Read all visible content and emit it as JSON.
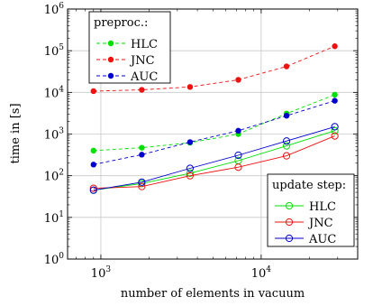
{
  "chart_data": {
    "type": "line",
    "xscale": "log",
    "yscale": "log",
    "xlabel": "number of elements in vacuum",
    "ylabel": "time in [s]",
    "xlim": [
      620,
      40000
    ],
    "ylim": [
      1,
      1000000
    ],
    "x": [
      900,
      1800,
      3600,
      7200,
      14400,
      28800
    ],
    "x_tick_values": [
      1000,
      10000
    ],
    "x_tick_labels": [
      {
        "base": "10",
        "exp": "3"
      },
      {
        "base": "10",
        "exp": "4"
      }
    ],
    "y_tick_values": [
      1,
      10,
      100,
      1000,
      10000,
      100000,
      1000000
    ],
    "y_tick_labels": [
      {
        "base": "10",
        "exp": "0"
      },
      {
        "base": "10",
        "exp": "1"
      },
      {
        "base": "10",
        "exp": "2"
      },
      {
        "base": "10",
        "exp": "3"
      },
      {
        "base": "10",
        "exp": "4"
      },
      {
        "base": "10",
        "exp": "5"
      },
      {
        "base": "10",
        "exp": "6"
      }
    ],
    "grid": true,
    "legends": [
      {
        "title": "preproc.:",
        "placement": "top-left",
        "entries": [
          "HLC",
          "JNC",
          "AUC"
        ]
      },
      {
        "title": "update step:",
        "placement": "bottom-right",
        "entries": [
          "HLC",
          "JNC",
          "AUC"
        ]
      }
    ],
    "series": [
      {
        "group": "preproc",
        "name": "HLC",
        "color": "#00e000",
        "style": "dashed",
        "marker": "filled-circle",
        "values": [
          400,
          470,
          620,
          1000,
          3100,
          8800
        ]
      },
      {
        "group": "preproc",
        "name": "JNC",
        "color": "#ee1111",
        "style": "dashed",
        "marker": "filled-circle",
        "values": [
          10700,
          11500,
          13500,
          20000,
          42000,
          128000
        ]
      },
      {
        "group": "preproc",
        "name": "AUC",
        "color": "#0000cc",
        "style": "dashed",
        "marker": "filled-circle",
        "values": [
          185,
          320,
          640,
          1200,
          2750,
          6300
        ]
      },
      {
        "group": "update",
        "name": "HLC",
        "color": "#00e000",
        "style": "solid",
        "marker": "open-circle",
        "values": [
          45,
          65,
          115,
          230,
          520,
          1200
        ]
      },
      {
        "group": "update",
        "name": "JNC",
        "color": "#ee1111",
        "style": "solid",
        "marker": "open-circle",
        "values": [
          50,
          55,
          100,
          160,
          300,
          900
        ]
      },
      {
        "group": "update",
        "name": "AUC",
        "color": "#0000cc",
        "style": "solid",
        "marker": "open-circle",
        "values": [
          45,
          70,
          150,
          310,
          680,
          1500
        ]
      }
    ]
  }
}
